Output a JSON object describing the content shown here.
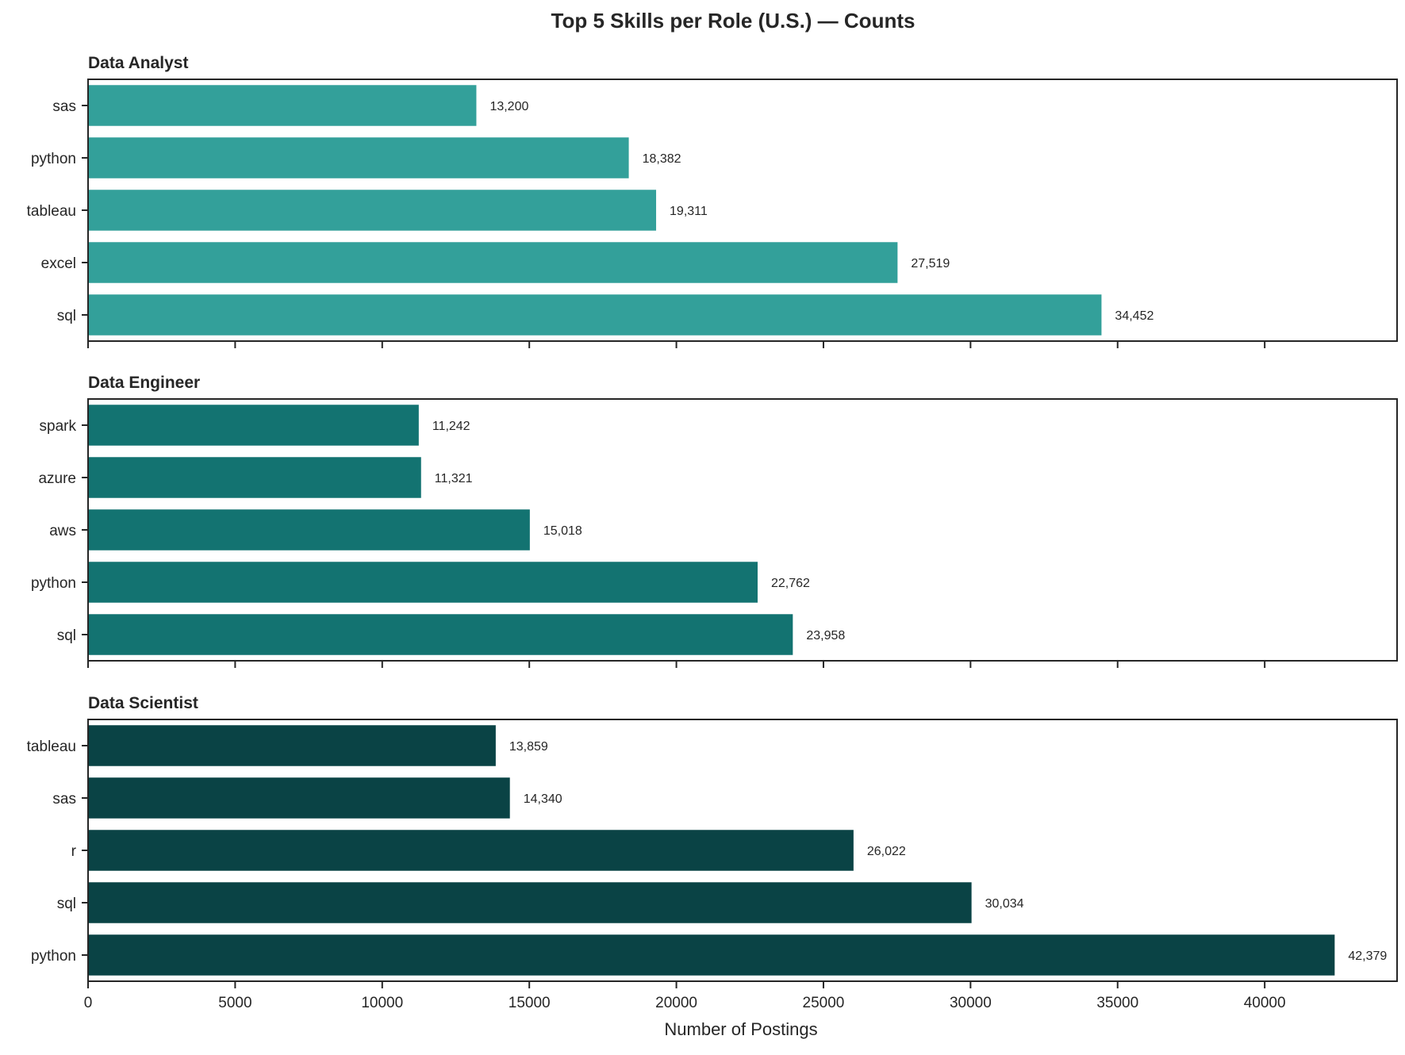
{
  "chart_data": {
    "type": "bar",
    "orientation": "horizontal",
    "title": "Top 5 Skills per Role (U.S.) — Counts",
    "xlabel": "Number of Postings",
    "xlim": [
      0,
      44500
    ],
    "xticks": [
      0,
      5000,
      10000,
      15000,
      20000,
      25000,
      30000,
      35000,
      40000
    ],
    "xtick_labels": [
      "0",
      "5000",
      "10000",
      "15000",
      "20000",
      "25000",
      "30000",
      "35000",
      "40000"
    ],
    "shared_x_axis": true,
    "grid": false,
    "panels": [
      {
        "title": "Data Analyst",
        "color": "#33a09a",
        "categories": [
          "sas",
          "python",
          "tableau",
          "excel",
          "sql"
        ],
        "values": [
          13200,
          18382,
          19311,
          27519,
          34452
        ],
        "labels": [
          "13,200",
          "18,382",
          "19,311",
          "27,519",
          "34,452"
        ]
      },
      {
        "title": "Data Engineer",
        "color": "#137371",
        "categories": [
          "spark",
          "azure",
          "aws",
          "python",
          "sql"
        ],
        "values": [
          11242,
          11321,
          15018,
          22762,
          23958
        ],
        "labels": [
          "11,242",
          "11,321",
          "15,018",
          "22,762",
          "23,958"
        ]
      },
      {
        "title": "Data Scientist",
        "color": "#0a4345",
        "categories": [
          "tableau",
          "sas",
          "r",
          "sql",
          "python"
        ],
        "values": [
          13859,
          14340,
          26022,
          30034,
          42379
        ],
        "labels": [
          "13,859",
          "14,340",
          "26,022",
          "30,034",
          "42,379"
        ]
      }
    ]
  }
}
